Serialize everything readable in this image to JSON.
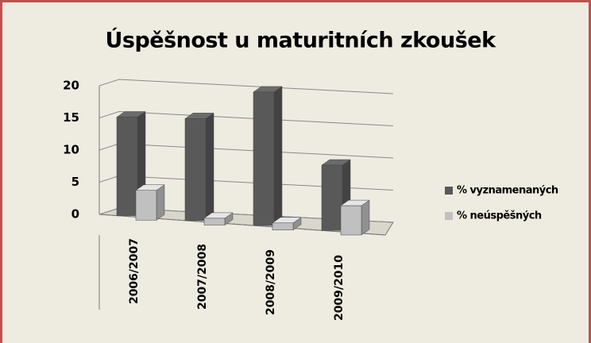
{
  "chart_data": {
    "type": "bar3d",
    "title": "Úspěšnost u maturitních zkoušek",
    "categories": [
      "2006/2007",
      "2007/2008",
      "2008/2009",
      "2009/2010"
    ],
    "series": [
      {
        "name": "% vyznamenaných",
        "color": "#595959",
        "values": [
          15,
          15,
          19,
          9
        ]
      },
      {
        "name": "% neúspěšných",
        "color": "#c0c0c0",
        "values": [
          4.5,
          1,
          1,
          4
        ]
      }
    ],
    "ylim": [
      0,
      20
    ],
    "yticks": [
      0,
      5,
      10,
      15,
      20
    ],
    "grid": true,
    "legend": "right"
  }
}
